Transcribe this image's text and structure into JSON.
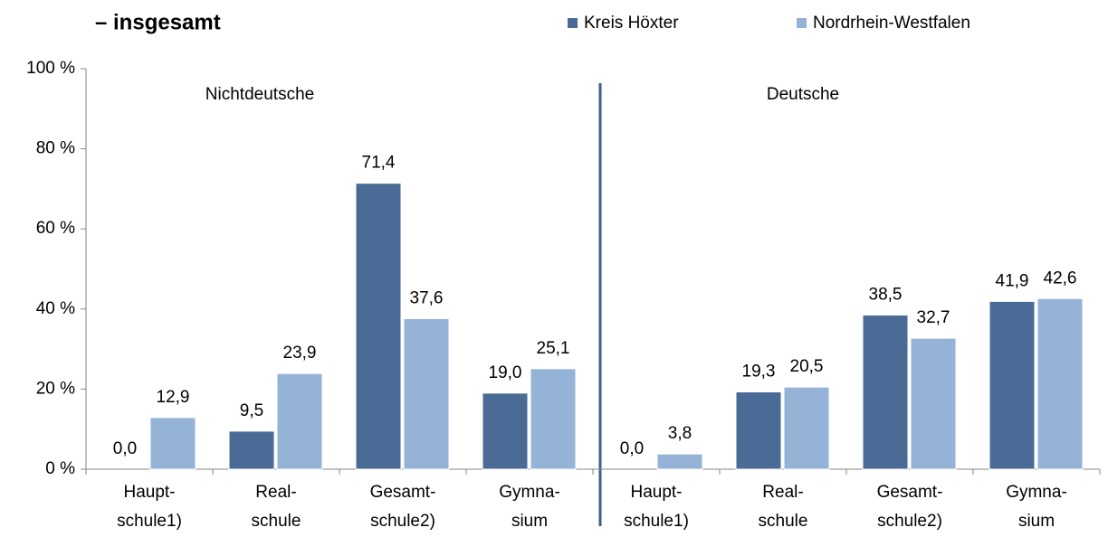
{
  "chart_data": {
    "type": "bar",
    "title": "– insgesamt",
    "annotations": [
      "Nichtdeutsche",
      "Deutsche"
    ],
    "categories": [
      [
        "Haupt-",
        "schule1)"
      ],
      [
        "Real-",
        "schule"
      ],
      [
        "Gesamt-",
        "schule2)"
      ],
      [
        "Gymna-",
        "sium"
      ],
      [
        "Haupt-",
        "schule1)"
      ],
      [
        "Real-",
        "schule"
      ],
      [
        "Gesamt-",
        "schule2)"
      ],
      [
        "Gymna-",
        "sium"
      ]
    ],
    "series": [
      {
        "name": "Kreis Höxter",
        "color": "#4a6b96",
        "values": [
          0.0,
          9.5,
          71.4,
          19.0,
          0.0,
          19.3,
          38.5,
          41.9
        ],
        "value_labels": [
          "0,0",
          "9,5",
          "71,4",
          "19,0",
          "0,0",
          "19,3",
          "38,5",
          "41,9"
        ]
      },
      {
        "name": "Nordrhein-Westfalen",
        "color": "#95b3d7",
        "values": [
          12.9,
          23.9,
          37.6,
          25.1,
          3.8,
          20.5,
          32.7,
          42.6
        ],
        "value_labels": [
          "12,9",
          "23,9",
          "37,6",
          "25,1",
          "3,8",
          "20,5",
          "32,7",
          "42,6"
        ]
      }
    ],
    "ylim": [
      0,
      100
    ],
    "yticks": [
      {
        "value": 0,
        "label": "0 %"
      },
      {
        "value": 20,
        "label": "20 %"
      },
      {
        "value": 40,
        "label": "40 %"
      },
      {
        "value": 60,
        "label": "60 %"
      },
      {
        "value": 80,
        "label": "80 %"
      },
      {
        "value": 100,
        "label": "100 %"
      }
    ],
    "legend": "top-right"
  }
}
